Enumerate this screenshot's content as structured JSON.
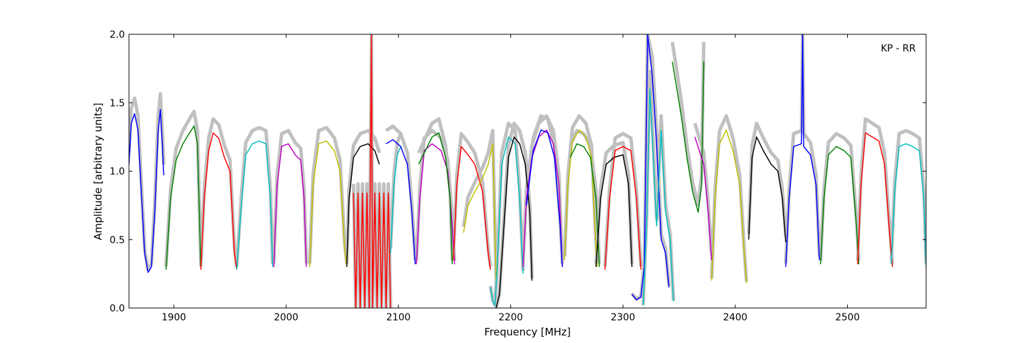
{
  "chart_data": {
    "type": "line",
    "xlabel": "Frequency [MHz]",
    "ylabel": "Amplitude [arbitrary units]",
    "annotation": "KP - RR",
    "xlim": [
      1860,
      2570
    ],
    "ylim": [
      0.0,
      2.0
    ],
    "grid": false,
    "x_ticks": [
      1900,
      2000,
      2100,
      2200,
      2300,
      2400,
      2500
    ],
    "x_tick_labels": [
      "1900",
      "2000",
      "2100",
      "2200",
      "2300",
      "2400",
      "2500"
    ],
    "y_ticks": [
      0.0,
      0.5,
      1.0,
      1.5,
      2.0
    ],
    "y_tick_labels": [
      "0.0",
      "0.5",
      "1.0",
      "1.5",
      "2.0"
    ],
    "background_color": "#c0c0c0",
    "series": [
      {
        "color": "#0000ff",
        "values": [
          [
            1860,
            1.05
          ],
          [
            1862,
            1.35
          ],
          [
            1865,
            1.42
          ],
          [
            1868,
            1.3
          ],
          [
            1871,
            0.85
          ],
          [
            1874,
            0.4
          ],
          [
            1877,
            0.26
          ],
          [
            1880,
            0.3
          ],
          [
            1883,
            0.7
          ],
          [
            1886,
            1.3
          ],
          [
            1888,
            1.45
          ],
          [
            1890,
            1.15
          ],
          [
            1891,
            0.97
          ]
        ]
      },
      {
        "color": "#008000",
        "values": [
          [
            1893,
            0.28
          ],
          [
            1897,
            0.8
          ],
          [
            1902,
            1.08
          ],
          [
            1908,
            1.2
          ],
          [
            1914,
            1.28
          ],
          [
            1918,
            1.33
          ],
          [
            1921,
            1.2
          ],
          [
            1923,
            0.6
          ],
          [
            1924,
            0.3
          ]
        ]
      },
      {
        "color": "#ff0000",
        "values": [
          [
            1924,
            0.28
          ],
          [
            1927,
            0.8
          ],
          [
            1931,
            1.15
          ],
          [
            1935,
            1.28
          ],
          [
            1940,
            1.24
          ],
          [
            1945,
            1.1
          ],
          [
            1950,
            1.0
          ],
          [
            1954,
            0.4
          ],
          [
            1956,
            0.28
          ]
        ]
      },
      {
        "color": "#00bfbf",
        "values": [
          [
            1956,
            0.28
          ],
          [
            1960,
            0.75
          ],
          [
            1964,
            1.12
          ],
          [
            1970,
            1.2
          ],
          [
            1976,
            1.22
          ],
          [
            1982,
            1.2
          ],
          [
            1986,
            0.8
          ],
          [
            1988,
            0.3
          ]
        ]
      },
      {
        "color": "#bf00bf",
        "values": [
          [
            1989,
            0.3
          ],
          [
            1992,
            0.9
          ],
          [
            1996,
            1.18
          ],
          [
            2002,
            1.2
          ],
          [
            2008,
            1.12
          ],
          [
            2013,
            1.08
          ],
          [
            2016,
            0.8
          ],
          [
            2018,
            0.3
          ]
        ]
      },
      {
        "color": "#bfbf00",
        "values": [
          [
            2021,
            0.3
          ],
          [
            2024,
            0.9
          ],
          [
            2029,
            1.2
          ],
          [
            2036,
            1.22
          ],
          [
            2043,
            1.15
          ],
          [
            2048,
            1.0
          ],
          [
            2052,
            0.45
          ],
          [
            2054,
            0.3
          ]
        ]
      },
      {
        "color": "#000000",
        "values": [
          [
            2054,
            0.3
          ],
          [
            2056,
            0.8
          ],
          [
            2060,
            1.1
          ],
          [
            2066,
            1.18
          ],
          [
            2073,
            1.2
          ],
          [
            2079,
            1.15
          ],
          [
            2083,
            1.05
          ]
        ]
      },
      {
        "color": "#ff0000",
        "values": [
          [
            2060,
            0.84
          ],
          [
            2062,
            0.0
          ],
          [
            2064,
            0.84
          ],
          [
            2066,
            0.0
          ],
          [
            2068,
            0.84
          ],
          [
            2070,
            0.0
          ],
          [
            2072,
            0.84
          ],
          [
            2074,
            0.0
          ],
          [
            2076,
            2.0
          ],
          [
            2077,
            0.0
          ],
          [
            2079,
            0.84
          ],
          [
            2081,
            0.0
          ],
          [
            2083,
            0.84
          ],
          [
            2085,
            0.0
          ],
          [
            2087,
            0.84
          ],
          [
            2089,
            0.0
          ],
          [
            2091,
            0.84
          ],
          [
            2093,
            0.0
          ]
        ]
      },
      {
        "color": "#00bfbf",
        "values": [
          [
            2093,
            0.4
          ],
          [
            2096,
            0.9
          ],
          [
            2099,
            1.12
          ],
          [
            2102,
            1.18
          ]
        ]
      },
      {
        "color": "#0000ff",
        "values": [
          [
            2089,
            1.2
          ],
          [
            2095,
            1.23
          ],
          [
            2102,
            1.18
          ],
          [
            2108,
            1.05
          ],
          [
            2112,
            0.7
          ],
          [
            2115,
            0.32
          ]
        ]
      },
      {
        "color": "#bf00bf",
        "values": [
          [
            2116,
            0.32
          ],
          [
            2119,
            0.8
          ],
          [
            2123,
            1.15
          ],
          [
            2130,
            1.2
          ],
          [
            2138,
            1.15
          ],
          [
            2144,
            1.0
          ],
          [
            2148,
            0.6
          ],
          [
            2150,
            0.32
          ]
        ]
      },
      {
        "color": "#008000",
        "values": [
          [
            2118,
            1.05
          ],
          [
            2124,
            1.15
          ],
          [
            2130,
            1.25
          ],
          [
            2136,
            1.28
          ],
          [
            2142,
            1.1
          ],
          [
            2146,
            0.8
          ],
          [
            2148,
            0.32
          ]
        ]
      },
      {
        "color": "#ff0000",
        "values": [
          [
            2149,
            0.35
          ],
          [
            2152,
            0.9
          ],
          [
            2156,
            1.18
          ],
          [
            2162,
            1.12
          ],
          [
            2168,
            1.05
          ],
          [
            2175,
            0.85
          ],
          [
            2180,
            0.4
          ],
          [
            2182,
            0.28
          ]
        ]
      },
      {
        "color": "#bfbf00",
        "values": [
          [
            2158,
            0.55
          ],
          [
            2162,
            0.75
          ],
          [
            2168,
            0.85
          ],
          [
            2175,
            0.95
          ],
          [
            2180,
            1.05
          ],
          [
            2184,
            1.2
          ],
          [
            2187,
            0.2
          ]
        ]
      },
      {
        "color": "#00bfbf",
        "values": [
          [
            2182,
            0.15
          ],
          [
            2184,
            0.05
          ],
          [
            2186,
            0.02
          ],
          [
            2188,
            0.3
          ],
          [
            2192,
            1.05
          ],
          [
            2198,
            1.25
          ],
          [
            2204,
            1.2
          ],
          [
            2208,
            0.8
          ],
          [
            2211,
            0.25
          ]
        ]
      },
      {
        "color": "#000000",
        "values": [
          [
            2187,
            0.0
          ],
          [
            2190,
            0.1
          ],
          [
            2194,
            0.6
          ],
          [
            2198,
            1.1
          ],
          [
            2203,
            1.25
          ],
          [
            2208,
            1.2
          ],
          [
            2213,
            1.05
          ],
          [
            2217,
            0.7
          ],
          [
            2219,
            0.2
          ]
        ]
      },
      {
        "color": "#bf00bf",
        "values": [
          [
            2211,
            0.3
          ],
          [
            2214,
            0.8
          ],
          [
            2219,
            1.1
          ],
          [
            2225,
            1.25
          ],
          [
            2232,
            1.3
          ],
          [
            2238,
            1.2
          ],
          [
            2243,
            0.9
          ],
          [
            2246,
            0.3
          ]
        ]
      },
      {
        "color": "#0000ff",
        "values": [
          [
            2214,
            0.75
          ],
          [
            2220,
            1.15
          ],
          [
            2227,
            1.3
          ],
          [
            2233,
            1.28
          ],
          [
            2239,
            1.1
          ],
          [
            2244,
            0.6
          ],
          [
            2246,
            0.3
          ]
        ]
      },
      {
        "color": "#bfbf00",
        "values": [
          [
            2248,
            0.35
          ],
          [
            2251,
            0.9
          ],
          [
            2255,
            1.22
          ],
          [
            2261,
            1.3
          ],
          [
            2267,
            1.25
          ],
          [
            2272,
            1.1
          ],
          [
            2275,
            0.6
          ],
          [
            2277,
            0.3
          ]
        ]
      },
      {
        "color": "#008000",
        "values": [
          [
            2253,
            1.1
          ],
          [
            2259,
            1.2
          ],
          [
            2265,
            1.18
          ],
          [
            2271,
            1.1
          ],
          [
            2276,
            0.8
          ],
          [
            2279,
            0.3
          ]
        ]
      },
      {
        "color": "#000000",
        "values": [
          [
            2276,
            0.3
          ],
          [
            2280,
            0.8
          ],
          [
            2285,
            1.05
          ],
          [
            2292,
            1.1
          ],
          [
            2300,
            1.12
          ],
          [
            2305,
            0.9
          ],
          [
            2308,
            0.3
          ]
        ]
      },
      {
        "color": "#ff0000",
        "values": [
          [
            2284,
            0.28
          ],
          [
            2288,
            0.8
          ],
          [
            2293,
            1.15
          ],
          [
            2300,
            1.18
          ],
          [
            2307,
            1.15
          ],
          [
            2312,
            0.8
          ],
          [
            2316,
            0.28
          ]
        ]
      },
      {
        "color": "#0000ff",
        "values": [
          [
            2308,
            0.1
          ],
          [
            2312,
            0.06
          ],
          [
            2316,
            0.08
          ],
          [
            2319,
            0.3
          ],
          [
            2322,
            2.0
          ],
          [
            2326,
            1.7
          ],
          [
            2330,
            1.2
          ],
          [
            2334,
            0.5
          ],
          [
            2338,
            0.4
          ],
          [
            2341,
            0.15
          ]
        ]
      },
      {
        "color": "#00bfbf",
        "values": [
          [
            2318,
            0.02
          ],
          [
            2321,
            0.6
          ],
          [
            2324,
            1.6
          ],
          [
            2327,
            1.1
          ],
          [
            2330,
            0.6
          ],
          [
            2334,
            1.3
          ],
          [
            2338,
            0.7
          ],
          [
            2342,
            0.5
          ],
          [
            2345,
            0.05
          ]
        ]
      },
      {
        "color": "#008000",
        "values": [
          [
            2344,
            1.8
          ],
          [
            2348,
            1.6
          ],
          [
            2352,
            1.4
          ],
          [
            2357,
            1.1
          ],
          [
            2362,
            0.85
          ],
          [
            2367,
            0.7
          ],
          [
            2370,
            0.9
          ],
          [
            2372,
            1.8
          ]
        ]
      },
      {
        "color": "#bf00bf",
        "values": [
          [
            2364,
            1.25
          ],
          [
            2368,
            1.15
          ],
          [
            2372,
            1.05
          ],
          [
            2376,
            0.7
          ],
          [
            2379,
            0.35
          ]
        ]
      },
      {
        "color": "#bfbf00",
        "values": [
          [
            2379,
            0.2
          ],
          [
            2382,
            0.8
          ],
          [
            2386,
            1.2
          ],
          [
            2392,
            1.3
          ],
          [
            2398,
            1.15
          ],
          [
            2404,
            0.9
          ],
          [
            2408,
            0.4
          ],
          [
            2410,
            0.18
          ]
        ]
      },
      {
        "color": "#000000",
        "values": [
          [
            2412,
            0.5
          ],
          [
            2415,
            1.1
          ],
          [
            2419,
            1.25
          ],
          [
            2425,
            1.15
          ],
          [
            2432,
            1.05
          ],
          [
            2438,
            1.0
          ],
          [
            2442,
            0.8
          ],
          [
            2445,
            0.48
          ]
        ]
      },
      {
        "color": "#0000ff",
        "values": [
          [
            2445,
            0.3
          ],
          [
            2448,
            0.8
          ],
          [
            2452,
            1.18
          ],
          [
            2459,
            1.2
          ],
          [
            2460,
            2.0
          ],
          [
            2461,
            1.18
          ],
          [
            2467,
            1.12
          ],
          [
            2472,
            0.9
          ],
          [
            2475,
            0.35
          ]
        ]
      },
      {
        "color": "#008000",
        "values": [
          [
            2476,
            0.32
          ],
          [
            2479,
            0.8
          ],
          [
            2483,
            1.12
          ],
          [
            2490,
            1.18
          ],
          [
            2497,
            1.15
          ],
          [
            2503,
            1.1
          ],
          [
            2508,
            0.6
          ],
          [
            2510,
            0.32
          ]
        ]
      },
      {
        "color": "#ff0000",
        "values": [
          [
            2509,
            0.32
          ],
          [
            2512,
            0.9
          ],
          [
            2516,
            1.28
          ],
          [
            2522,
            1.25
          ],
          [
            2528,
            1.22
          ],
          [
            2533,
            1.05
          ],
          [
            2537,
            0.6
          ],
          [
            2540,
            0.3
          ]
        ]
      },
      {
        "color": "#00bfbf",
        "values": [
          [
            2539,
            0.32
          ],
          [
            2542,
            0.85
          ],
          [
            2546,
            1.18
          ],
          [
            2552,
            1.2
          ],
          [
            2558,
            1.18
          ],
          [
            2564,
            1.15
          ],
          [
            2568,
            0.8
          ],
          [
            2570,
            0.3
          ]
        ]
      }
    ]
  }
}
